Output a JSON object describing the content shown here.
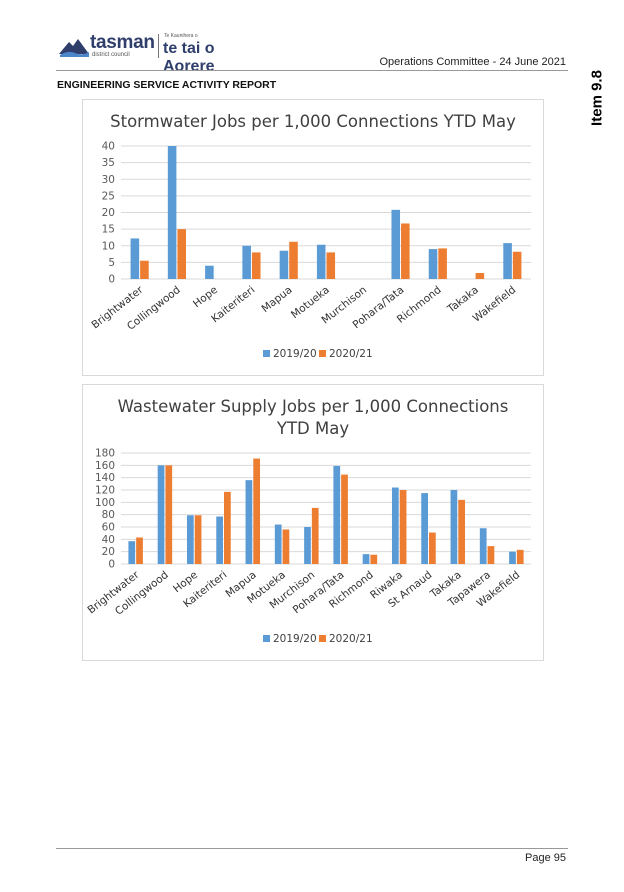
{
  "header": {
    "logo_name": "tasman",
    "logo_sub": "district council",
    "logo_maori_small": "Te Kaunihera o",
    "logo_maori": "te tai o Aorere",
    "meeting": "Operations Committee - 24 June 2021",
    "report_title": "ENGINEERING SERVICE ACTIVITY REPORT",
    "item": "Item 9.8"
  },
  "footer": {
    "page": "Page 95"
  },
  "colors": {
    "series_2019": "#5b9bd5",
    "series_2020": "#ed7d31",
    "gridline": "#d9d9d9",
    "axis_text": "#595959"
  },
  "chart_data": [
    {
      "type": "bar",
      "title": "Stormwater Jobs per 1,000 Connections YTD May",
      "categories": [
        "Brightwater",
        "Collingwood",
        "Hope",
        "Kaiteriteri",
        "Mapua",
        "Motueka",
        "Murchison",
        "Pohara/Tata",
        "Richmond",
        "Takaka",
        "Wakefield"
      ],
      "series": [
        {
          "name": "2019/20",
          "values": [
            12.2,
            40,
            4,
            10,
            8.5,
            10.3,
            0,
            20.8,
            9,
            0,
            10.8
          ]
        },
        {
          "name": "2020/21",
          "values": [
            5.5,
            15,
            0,
            8,
            11.2,
            8,
            0,
            16.7,
            9.2,
            1.8,
            8.2
          ]
        }
      ],
      "ylim": [
        0,
        40
      ],
      "yticks": [
        0,
        5,
        10,
        15,
        20,
        25,
        30,
        35,
        40
      ],
      "xlabel": "",
      "ylabel": "",
      "legend": "bottom"
    },
    {
      "type": "bar",
      "title": "Wastewater Supply Jobs per 1,000 Connections YTD May",
      "title_lines": [
        "Wastewater Supply Jobs per 1,000 Connections",
        "YTD May"
      ],
      "categories": [
        "Brightwater",
        "Collingwood",
        "Hope",
        "Kaiteriteri",
        "Mapua",
        "Motueka",
        "Murchison",
        "Pohara/Tata",
        "Richmond",
        "Riwaka",
        "St Arnaud",
        "Takaka",
        "Tapawera",
        "Wakefield"
      ],
      "series": [
        {
          "name": "2019/20",
          "values": [
            37,
            160,
            79,
            77,
            136,
            64,
            60,
            159,
            16,
            124,
            115,
            120,
            58,
            20
          ]
        },
        {
          "name": "2020/21",
          "values": [
            43,
            160,
            79,
            117,
            171,
            56,
            91,
            145,
            15,
            120,
            51,
            104,
            29,
            23
          ]
        }
      ],
      "ylim": [
        0,
        180
      ],
      "yticks": [
        0,
        20,
        40,
        60,
        80,
        100,
        120,
        140,
        160,
        180
      ],
      "xlabel": "",
      "ylabel": "",
      "legend": "bottom"
    }
  ]
}
